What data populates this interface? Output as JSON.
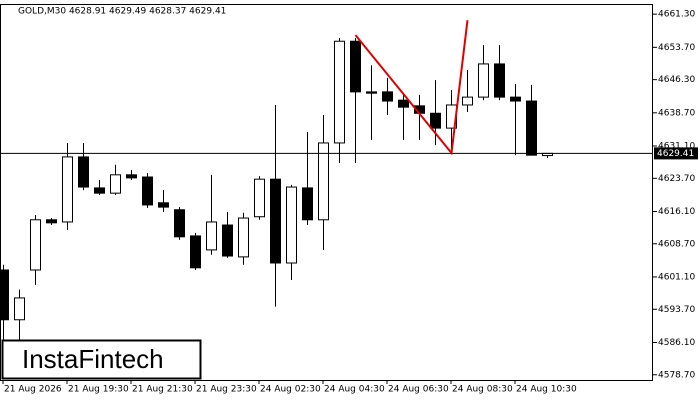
{
  "chart_data": {
    "type": "candlestick",
    "title": "GOLD,M30  4628.91 4629.49 4628.37 4629.41",
    "logo": "InstaFintech",
    "categories": [
      "21 Aug 2026",
      null,
      null,
      null,
      "21 Aug 19:30",
      null,
      null,
      null,
      "21 Aug 21:30",
      null,
      null,
      null,
      "21 Aug 23:30",
      null,
      null,
      null,
      "24 Aug 02:30",
      null,
      null,
      null,
      "24 Aug 04:30",
      null,
      null,
      null,
      "24 Aug 06:30",
      null,
      null,
      null,
      "24 Aug 08:30",
      null,
      null,
      null,
      "24 Aug 10:30",
      null,
      null
    ],
    "open": [
      4602.7,
      4591.3,
      4602.7,
      4614.2,
      4613.7,
      4628.6,
      4621.5,
      4620.3,
      4624.5,
      4624.0,
      4618.1,
      4616.5,
      4610.5,
      4607.3,
      4613.0,
      4605.7,
      4614.9,
      4623.5,
      4604.3,
      4621.5,
      4614.2,
      4631.8,
      4655.1,
      4643.5,
      4643.5,
      4641.6,
      4640.3,
      4638.6,
      4635.2,
      4640.5,
      4642.3,
      4649.9,
      4642.3,
      4641.4,
      4628.91
    ],
    "high": [
      4603.9,
      4598.2,
      4615.3,
      4614.6,
      4631.8,
      4631.8,
      4623.3,
      4626.8,
      4625.6,
      4624.9,
      4621.0,
      4617.1,
      4611.2,
      4624.5,
      4616.0,
      4615.8,
      4624.2,
      4640.5,
      4622.2,
      4634.3,
      4638.2,
      4655.8,
      4655.8,
      4649.6,
      4646.7,
      4642.8,
      4642.8,
      4646.2,
      4643.9,
      4648.5,
      4654.2,
      4654.2,
      4645.3,
      4645.1,
      4629.49
    ],
    "low": [
      4586.7,
      4586.7,
      4599.3,
      4613.0,
      4611.9,
      4621.0,
      4619.9,
      4619.9,
      4623.3,
      4616.9,
      4616.0,
      4609.6,
      4602.7,
      4606.2,
      4605.5,
      4603.9,
      4614.2,
      4594.3,
      4600.4,
      4613.0,
      4607.3,
      4627.2,
      4627.2,
      4632.5,
      4638.2,
      4632.5,
      4632.5,
      4631.3,
      4629.7,
      4638.9,
      4641.6,
      4641.6,
      4629.0,
      4629.0,
      4628.37
    ],
    "close": [
      4591.3,
      4596.3,
      4614.2,
      4613.5,
      4628.6,
      4621.7,
      4620.3,
      4624.5,
      4623.8,
      4617.6,
      4617.1,
      4610.3,
      4603.2,
      4613.7,
      4605.9,
      4614.6,
      4623.5,
      4604.3,
      4621.7,
      4614.2,
      4631.8,
      4655.1,
      4643.5,
      4643.2,
      4641.4,
      4640.0,
      4638.6,
      4635.2,
      4640.5,
      4642.3,
      4649.9,
      4642.3,
      4641.4,
      4629.0,
      4629.41
    ],
    "up_color": "#ffffff",
    "down_color": "#000000",
    "price_line": {
      "value": 4629.41,
      "label": "4629.41"
    },
    "pattern": {
      "color": "#e00000",
      "x": [
        22,
        28,
        29
      ],
      "y": [
        4656.5,
        4629.5,
        4659.9
      ]
    },
    "ylim": [
      4577.5,
      4663.4
    ],
    "yticks": [
      {
        "value": 4578.7,
        "label": "4578.70"
      },
      {
        "value": 4586.1,
        "label": "4586.10"
      },
      {
        "value": 4593.7,
        "label": "4593.70"
      },
      {
        "value": 4601.1,
        "label": "4601.10"
      },
      {
        "value": 4608.7,
        "label": "4608.70"
      },
      {
        "value": 4616.1,
        "label": "4616.10"
      },
      {
        "value": 4623.7,
        "label": "4623.70"
      },
      {
        "value": 4631.1,
        "label": "4631.10"
      },
      {
        "value": 4638.7,
        "label": "4638.70"
      },
      {
        "value": 4646.3,
        "label": "4646.30"
      },
      {
        "value": 4653.7,
        "label": "4653.70"
      },
      {
        "value": 4661.3,
        "label": "4661.30"
      }
    ]
  }
}
